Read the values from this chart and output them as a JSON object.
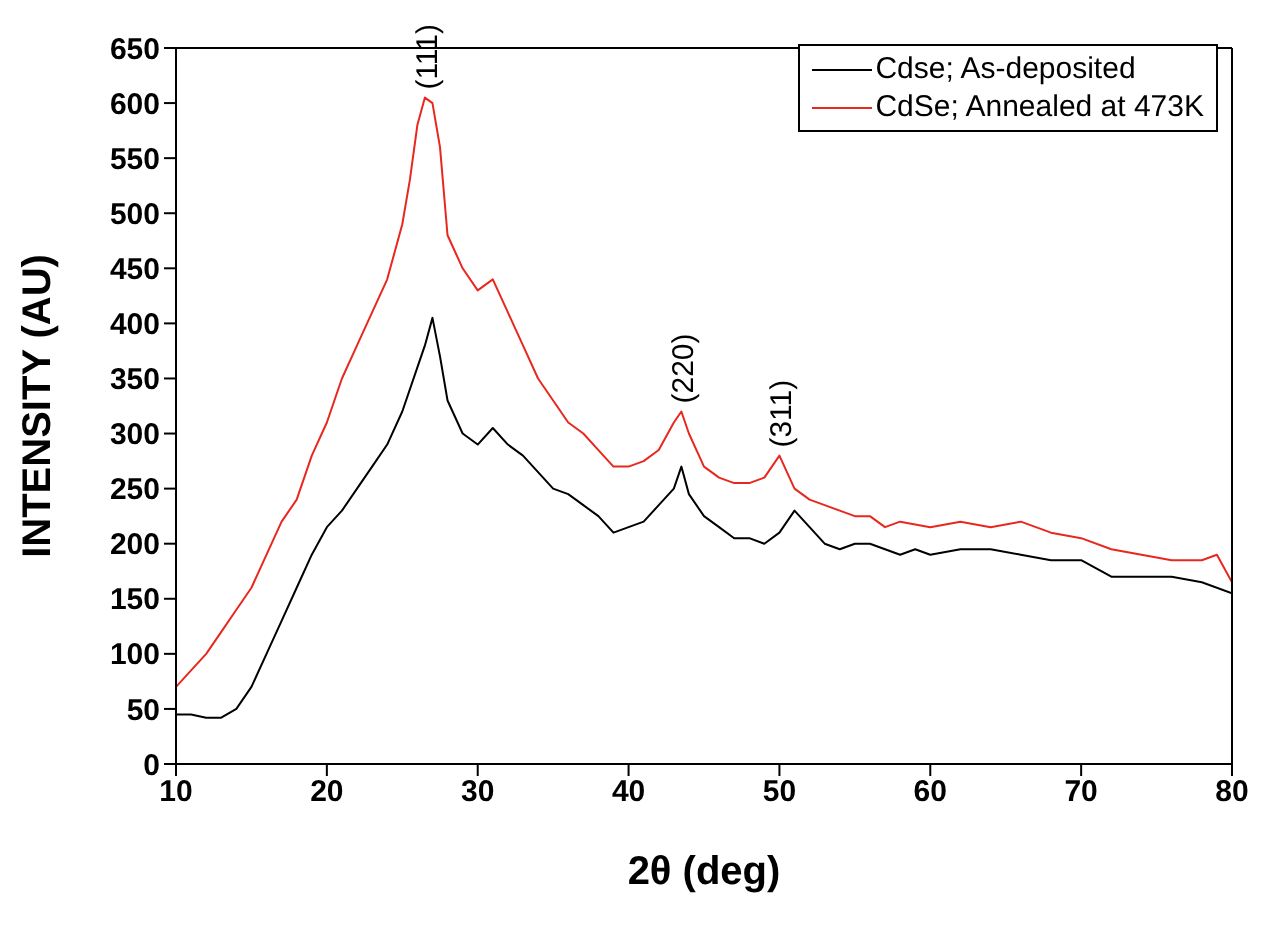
{
  "chart_data": {
    "type": "line",
    "xlabel": "2θ (deg)",
    "ylabel": "INTENSITY (AU)",
    "xlim": [
      10,
      80
    ],
    "xticks": [
      10,
      20,
      30,
      40,
      50,
      60,
      70,
      80
    ],
    "ylim": [
      0,
      650
    ],
    "yticks": [
      0,
      50,
      100,
      150,
      200,
      250,
      300,
      350,
      400,
      450,
      500,
      550,
      600,
      650
    ],
    "legend": "top right",
    "marker": "none",
    "line_style": "solid",
    "annotations": [
      {
        "text": "(111)",
        "x": 26.5,
        "y": 605
      },
      {
        "text": "(220)",
        "x": 43.5,
        "y": 320
      },
      {
        "text": "(311)",
        "x": 50,
        "y": 280
      }
    ],
    "series": [
      {
        "name": "Cdse; As-deposited",
        "color": "#000000",
        "x": [
          10,
          11,
          12,
          13,
          14,
          15,
          16,
          17,
          18,
          19,
          20,
          21,
          22,
          23,
          24,
          25,
          26,
          26.5,
          27,
          27.5,
          28,
          29,
          30,
          31,
          32,
          33,
          34,
          35,
          36,
          37,
          38,
          39,
          40,
          41,
          42,
          43,
          43.5,
          44,
          45,
          46,
          47,
          48,
          49,
          50,
          51,
          52,
          53,
          54,
          55,
          56,
          57,
          58,
          59,
          60,
          62,
          64,
          66,
          68,
          70,
          72,
          74,
          76,
          78,
          80
        ],
        "values": [
          45,
          45,
          42,
          42,
          50,
          70,
          100,
          130,
          160,
          190,
          215,
          230,
          250,
          270,
          290,
          320,
          360,
          380,
          405,
          370,
          330,
          300,
          290,
          305,
          290,
          280,
          265,
          250,
          245,
          235,
          225,
          210,
          215,
          220,
          235,
          250,
          270,
          245,
          225,
          215,
          205,
          205,
          200,
          210,
          230,
          215,
          200,
          195,
          200,
          200,
          195,
          190,
          195,
          190,
          195,
          195,
          190,
          185,
          185,
          170,
          170,
          170,
          165,
          155
        ]
      },
      {
        "name": "CdSe; Annealed at 473K",
        "color": "#e8281e",
        "x": [
          10,
          11,
          12,
          13,
          14,
          15,
          16,
          17,
          18,
          19,
          20,
          21,
          22,
          23,
          24,
          25,
          25.5,
          26,
          26.5,
          27,
          27.5,
          28,
          29,
          30,
          31,
          32,
          33,
          34,
          35,
          36,
          37,
          38,
          39,
          40,
          41,
          42,
          43,
          43.5,
          44,
          45,
          46,
          47,
          48,
          49,
          50,
          51,
          52,
          53,
          54,
          55,
          56,
          57,
          58,
          60,
          62,
          64,
          66,
          68,
          70,
          72,
          74,
          76,
          78,
          79,
          80
        ],
        "values": [
          70,
          85,
          100,
          120,
          140,
          160,
          190,
          220,
          240,
          280,
          310,
          350,
          380,
          410,
          440,
          490,
          530,
          580,
          605,
          600,
          560,
          480,
          450,
          430,
          440,
          410,
          380,
          350,
          330,
          310,
          300,
          285,
          270,
          270,
          275,
          285,
          310,
          320,
          300,
          270,
          260,
          255,
          255,
          260,
          280,
          250,
          240,
          235,
          230,
          225,
          225,
          215,
          220,
          215,
          220,
          215,
          220,
          210,
          205,
          195,
          190,
          185,
          185,
          190,
          165
        ]
      }
    ]
  }
}
